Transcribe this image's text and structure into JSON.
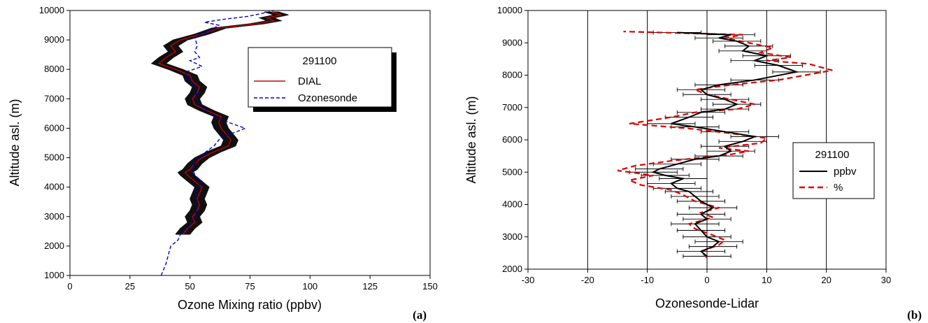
{
  "chart_data": [
    {
      "type": "line",
      "panel_label": "(a)",
      "xlabel": "Ozone Mixing ratio (ppbv)",
      "ylabel": "Altitude asl. (m)",
      "xlim": [
        0,
        150
      ],
      "ylim": [
        1000,
        10000
      ],
      "x_ticks": [
        "0",
        "25",
        "50",
        "75",
        "100",
        "125",
        "150"
      ],
      "y_ticks": [
        "1000",
        "2000",
        "3000",
        "4000",
        "5000",
        "6000",
        "7000",
        "8000",
        "9000",
        "10000"
      ],
      "grid": false,
      "legend": {
        "title": "291100",
        "position": "top-right",
        "entries": [
          "DIAL",
          "Ozonesonde"
        ]
      },
      "series": [
        {
          "name": "DIAL",
          "color": "#cc0000",
          "error_band": 3,
          "points": [
            [
              47,
              2400
            ],
            [
              49,
              2600
            ],
            [
              52,
              2800
            ],
            [
              51,
              3000
            ],
            [
              53,
              3200
            ],
            [
              54,
              3400
            ],
            [
              53,
              3600
            ],
            [
              54,
              3800
            ],
            [
              55,
              4000
            ],
            [
              52,
              4200
            ],
            [
              49,
              4400
            ],
            [
              48,
              4500
            ],
            [
              50,
              4600
            ],
            [
              52,
              4800
            ],
            [
              55,
              5000
            ],
            [
              60,
              5200
            ],
            [
              66,
              5400
            ],
            [
              67,
              5600
            ],
            [
              65,
              5800
            ],
            [
              63,
              6000
            ],
            [
              62,
              6200
            ],
            [
              63,
              6400
            ],
            [
              57,
              6600
            ],
            [
              52,
              6800
            ],
            [
              51,
              7000
            ],
            [
              53,
              7200
            ],
            [
              54,
              7400
            ],
            [
              51,
              7600
            ],
            [
              50,
              7800
            ],
            [
              44,
              8000
            ],
            [
              37,
              8200
            ],
            [
              40,
              8400
            ],
            [
              44,
              8600
            ],
            [
              42,
              8800
            ],
            [
              46,
              9000
            ],
            [
              55,
              9200
            ],
            [
              62,
              9400
            ],
            [
              78,
              9550
            ],
            [
              85,
              9650
            ],
            [
              82,
              9750
            ],
            [
              88,
              9850
            ],
            [
              84,
              9950
            ]
          ]
        },
        {
          "name": "Ozonesonde",
          "color": "#0000cc",
          "points": [
            [
              38,
              1000
            ],
            [
              39,
              1200
            ],
            [
              40,
              1400
            ],
            [
              41,
              1700
            ],
            [
              42,
              2000
            ],
            [
              45,
              2200
            ],
            [
              46,
              2400
            ],
            [
              50,
              2700
            ],
            [
              52,
              3000
            ],
            [
              53,
              3300
            ],
            [
              53,
              3600
            ],
            [
              52,
              3900
            ],
            [
              55,
              4200
            ],
            [
              52,
              4400
            ],
            [
              51,
              4700
            ],
            [
              53,
              4900
            ],
            [
              55,
              5100
            ],
            [
              60,
              5400
            ],
            [
              63,
              5700
            ],
            [
              70,
              5900
            ],
            [
              73,
              6000
            ],
            [
              66,
              6200
            ],
            [
              60,
              6400
            ],
            [
              55,
              6700
            ],
            [
              52,
              7000
            ],
            [
              53,
              7300
            ],
            [
              50,
              7600
            ],
            [
              48,
              7900
            ],
            [
              55,
              8100
            ],
            [
              50,
              8300
            ],
            [
              54,
              8400
            ],
            [
              52,
              8600
            ],
            [
              53,
              8800
            ],
            [
              52,
              9100
            ],
            [
              58,
              9300
            ],
            [
              62,
              9500
            ],
            [
              56,
              9600
            ],
            [
              64,
              9700
            ],
            [
              74,
              9800
            ],
            [
              80,
              9900
            ],
            [
              85,
              10000
            ]
          ]
        }
      ]
    },
    {
      "type": "line",
      "panel_label": "(b)",
      "xlabel": "Ozonesonde-Lidar",
      "ylabel": "Altitude asl. (m)",
      "xlim": [
        -30,
        30
      ],
      "ylim": [
        2000,
        10000
      ],
      "x_ticks": [
        "-30",
        "-20",
        "-10",
        "0",
        "10",
        "20",
        "30"
      ],
      "y_ticks": [
        "2000",
        "3000",
        "4000",
        "5000",
        "6000",
        "7000",
        "8000",
        "9000",
        "10000"
      ],
      "grid": "vertical lines at -20, -10, 0, 10, 20",
      "legend": {
        "title": "291100",
        "position": "right",
        "entries": [
          "ppbv",
          "%"
        ]
      },
      "series": [
        {
          "name": "ppbv",
          "color": "#000000",
          "error_half_width": 4,
          "points": [
            [
              0,
              2400
            ],
            [
              -1,
              2550
            ],
            [
              1,
              2700
            ],
            [
              2,
              2850
            ],
            [
              0,
              3000
            ],
            [
              -1,
              3200
            ],
            [
              -2,
              3400
            ],
            [
              0,
              3550
            ],
            [
              -1,
              3700
            ],
            [
              1,
              3900
            ],
            [
              -1,
              4100
            ],
            [
              -2,
              4250
            ],
            [
              -3,
              4400
            ],
            [
              -5,
              4500
            ],
            [
              -6,
              4650
            ],
            [
              -4,
              4800
            ],
            [
              -7,
              4900
            ],
            [
              -9,
              5000
            ],
            [
              -8,
              5100
            ],
            [
              -5,
              5250
            ],
            [
              -2,
              5400
            ],
            [
              2,
              5500
            ],
            [
              4,
              5650
            ],
            [
              3,
              5800
            ],
            [
              6,
              5950
            ],
            [
              8,
              6100
            ],
            [
              3,
              6250
            ],
            [
              -2,
              6400
            ],
            [
              -6,
              6500
            ],
            [
              -3,
              6700
            ],
            [
              -1,
              6850
            ],
            [
              3,
              6950
            ],
            [
              5,
              7100
            ],
            [
              3,
              7250
            ],
            [
              0,
              7400
            ],
            [
              -1,
              7550
            ],
            [
              2,
              7700
            ],
            [
              8,
              7850
            ],
            [
              15,
              8100
            ],
            [
              12,
              8300
            ],
            [
              8,
              8450
            ],
            [
              10,
              8600
            ],
            [
              6,
              8750
            ],
            [
              7,
              8900
            ],
            [
              5,
              9050
            ],
            [
              2,
              9150
            ],
            [
              4,
              9250
            ],
            [
              -5,
              9320
            ]
          ]
        },
        {
          "name": "%",
          "color": "#dd0000",
          "points": [
            [
              0,
              2350
            ],
            [
              -1,
              2550
            ],
            [
              2,
              2750
            ],
            [
              3,
              2900
            ],
            [
              1,
              3050
            ],
            [
              -2,
              3250
            ],
            [
              -3,
              3400
            ],
            [
              1,
              3600
            ],
            [
              -1,
              3750
            ],
            [
              2,
              3900
            ],
            [
              -2,
              4100
            ],
            [
              -4,
              4300
            ],
            [
              -6,
              4450
            ],
            [
              -11,
              4600
            ],
            [
              -13,
              4750
            ],
            [
              -9,
              4900
            ],
            [
              -15,
              5050
            ],
            [
              -12,
              5200
            ],
            [
              -6,
              5350
            ],
            [
              -1,
              5450
            ],
            [
              4,
              5550
            ],
            [
              7,
              5650
            ],
            [
              2,
              5750
            ],
            [
              9,
              5900
            ],
            [
              10,
              6050
            ],
            [
              4,
              6200
            ],
            [
              -3,
              6350
            ],
            [
              -13,
              6500
            ],
            [
              -6,
              6700
            ],
            [
              -2,
              6850
            ],
            [
              5,
              6950
            ],
            [
              8,
              7100
            ],
            [
              4,
              7250
            ],
            [
              0,
              7400
            ],
            [
              -2,
              7550
            ],
            [
              4,
              7700
            ],
            [
              12,
              7850
            ],
            [
              21,
              8150
            ],
            [
              17,
              8350
            ],
            [
              10,
              8450
            ],
            [
              14,
              8550
            ],
            [
              9,
              8700
            ],
            [
              11,
              8850
            ],
            [
              7,
              9000
            ],
            [
              3,
              9150
            ],
            [
              6,
              9250
            ],
            [
              -14,
              9350
            ]
          ]
        }
      ]
    }
  ]
}
